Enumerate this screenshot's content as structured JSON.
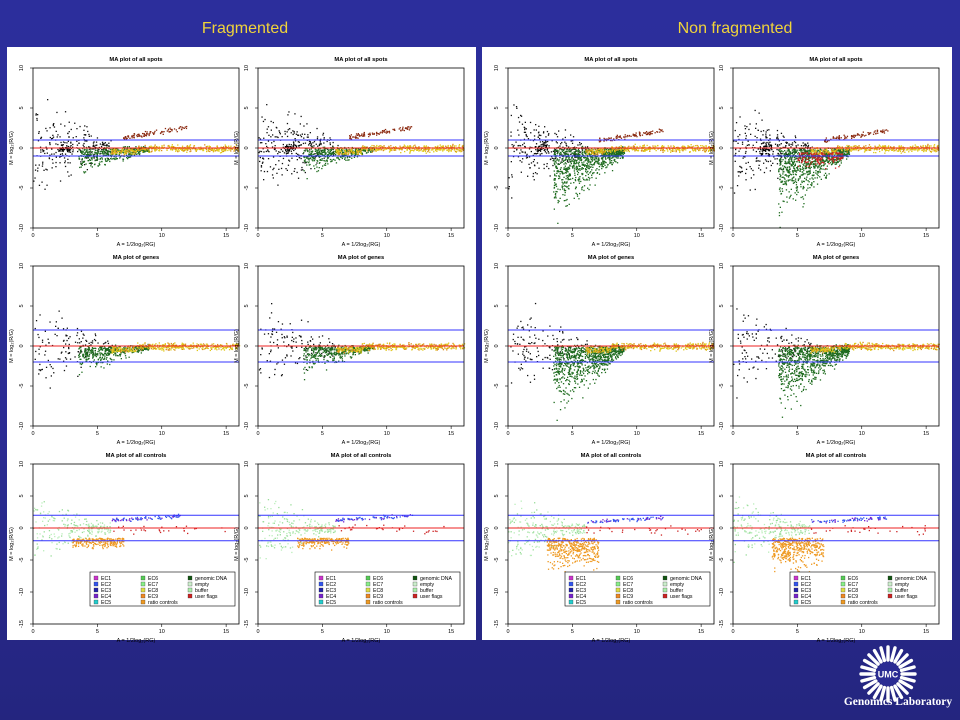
{
  "headings": {
    "left": "Fragmented",
    "right": "Non fragmented"
  },
  "plot_text": {
    "titles": [
      "MA plot of all spots",
      "MA plot of genes",
      "MA plot of all controls"
    ],
    "xlabel": "A = 1/2log₂(RG)",
    "ylabel": "M = log₂(R/G)"
  },
  "legend": {
    "entries": [
      {
        "label": "EC1",
        "color": "#cc33cc"
      },
      {
        "label": "EC2",
        "color": "#3355ee"
      },
      {
        "label": "EC3",
        "color": "#2222aa"
      },
      {
        "label": "EC4",
        "color": "#7722cc"
      },
      {
        "label": "EC5",
        "color": "#22cccc"
      },
      {
        "label": "EC6",
        "color": "#55cc55"
      },
      {
        "label": "EC7",
        "color": "#88ee88"
      },
      {
        "label": "EC8",
        "color": "#dddd44"
      },
      {
        "label": "EC9",
        "color": "#ee8822"
      },
      {
        "label": "ratio controls",
        "color": "#ee9922"
      },
      {
        "label": "genomic DNA",
        "color": "#115511"
      },
      {
        "label": "empty",
        "color": "#cceecc"
      },
      {
        "label": "buffer",
        "color": "#aaeeaa"
      },
      {
        "label": "user flags",
        "color": "#cc2222"
      }
    ]
  },
  "logo": {
    "initials": "UMC",
    "caption": "Genomics Laboratory"
  },
  "colors": {
    "background": "#2a2b93",
    "heading": "#f0d43a",
    "spots_general": "#111111",
    "spots_green": "#1e6b1e",
    "spots_orange": "#d98c1c",
    "spots_yellow": "#e0c81c",
    "spots_brown": "#8b2a10",
    "line_blue": "#3333ff",
    "line_red": "#ee2222"
  },
  "chart_data": [
    {
      "type": "scatter",
      "panel": "Fragmented",
      "row": "all spots",
      "title": "MA plot of all spots",
      "xlabel": "A = 1/2log₂(RG)",
      "ylabel": "M = log₂(R/G)",
      "xlim": [
        0,
        16
      ],
      "ylim": [
        -10,
        10
      ],
      "xticks": [
        0,
        5,
        10,
        15
      ],
      "yticks": [
        -10,
        -5,
        0,
        5,
        10
      ],
      "hlines": {
        "red": [
          0
        ],
        "blue": [
          1,
          -1
        ]
      }
    },
    {
      "type": "scatter",
      "panel": "Fragmented",
      "row": "all spots",
      "title": "MA plot of all spots",
      "xlabel": "A = 1/2log₂(RG)",
      "ylabel": "M = log₂(R/G)",
      "xlim": [
        0,
        16
      ],
      "ylim": [
        -10,
        10
      ],
      "xticks": [
        0,
        5,
        10,
        15
      ],
      "yticks": [
        -10,
        -5,
        0,
        5,
        10
      ],
      "hlines": {
        "red": [
          0
        ],
        "blue": [
          1,
          -1
        ]
      }
    },
    {
      "type": "scatter",
      "panel": "Non fragmented",
      "row": "all spots",
      "title": "MA plot of all spots",
      "xlabel": "A = 1/2log₂(RG)",
      "ylabel": "M = log₂(R/G)",
      "xlim": [
        0,
        16
      ],
      "ylim": [
        -10,
        10
      ],
      "xticks": [
        0,
        5,
        10,
        15
      ],
      "yticks": [
        -10,
        -5,
        0,
        5,
        10
      ],
      "hlines": {
        "red": [
          0
        ],
        "blue": [
          1,
          -1
        ]
      }
    },
    {
      "type": "scatter",
      "panel": "Non fragmented",
      "row": "all spots",
      "title": "MA plot of all spots",
      "xlabel": "A = 1/2log₂(RG)",
      "ylabel": "M = log₂(R/G)",
      "xlim": [
        0,
        16
      ],
      "ylim": [
        -10,
        10
      ],
      "xticks": [
        0,
        5,
        10,
        15
      ],
      "yticks": [
        -10,
        -5,
        0,
        5,
        10
      ],
      "hlines": {
        "red": [
          0
        ],
        "blue": [
          1,
          -1
        ]
      }
    },
    {
      "type": "scatter",
      "panel": "Fragmented",
      "row": "genes",
      "title": "MA plot of genes",
      "xlabel": "A = 1/2log₂(RG)",
      "ylabel": "M = log₂(R/G)",
      "xlim": [
        0,
        16
      ],
      "ylim": [
        -10,
        10
      ],
      "xticks": [
        0,
        5,
        10,
        15
      ],
      "yticks": [
        -10,
        -5,
        0,
        5,
        10
      ],
      "hlines": {
        "red": [
          0
        ],
        "blue": [
          2,
          -2
        ]
      }
    },
    {
      "type": "scatter",
      "panel": "Fragmented",
      "row": "genes",
      "title": "MA plot of genes",
      "xlabel": "A = 1/2log₂(RG)",
      "ylabel": "M = log₂(R/G)",
      "xlim": [
        0,
        16
      ],
      "ylim": [
        -10,
        10
      ],
      "xticks": [
        0,
        5,
        10,
        15
      ],
      "yticks": [
        -10,
        -5,
        0,
        5,
        10
      ],
      "hlines": {
        "red": [
          0
        ],
        "blue": [
          2,
          -2
        ]
      }
    },
    {
      "type": "scatter",
      "panel": "Non fragmented",
      "row": "genes",
      "title": "MA plot of genes",
      "xlabel": "A = 1/2log₂(RG)",
      "ylabel": "M = log₂(R/G)",
      "xlim": [
        0,
        16
      ],
      "ylim": [
        -10,
        10
      ],
      "xticks": [
        0,
        5,
        10,
        15
      ],
      "yticks": [
        -10,
        -5,
        0,
        5,
        10
      ],
      "hlines": {
        "red": [
          0
        ],
        "blue": [
          2,
          -2
        ]
      }
    },
    {
      "type": "scatter",
      "panel": "Non fragmented",
      "row": "genes",
      "title": "MA plot of genes",
      "xlabel": "A = 1/2log₂(RG)",
      "ylabel": "M = log₂(R/G)",
      "xlim": [
        0,
        16
      ],
      "ylim": [
        -10,
        10
      ],
      "xticks": [
        0,
        5,
        10,
        15
      ],
      "yticks": [
        -10,
        -5,
        0,
        5,
        10
      ],
      "hlines": {
        "red": [
          0
        ],
        "blue": [
          2,
          -2
        ]
      }
    },
    {
      "type": "scatter",
      "panel": "Fragmented",
      "row": "all controls",
      "title": "MA plot of all controls",
      "xlabel": "A = 1/2log₂(RG)",
      "ylabel": "M = log₂(R/G)",
      "xlim": [
        0,
        16
      ],
      "ylim": [
        -15,
        10
      ],
      "xticks": [
        0,
        5,
        10,
        15
      ],
      "yticks": [
        -15,
        -10,
        -5,
        0,
        5,
        10
      ],
      "hlines": {
        "red": [
          0
        ],
        "blue": [
          2,
          -2
        ]
      },
      "legend": true
    },
    {
      "type": "scatter",
      "panel": "Fragmented",
      "row": "all controls",
      "title": "MA plot of all controls",
      "xlabel": "A = 1/2log₂(RG)",
      "ylabel": "M = log₂(R/G)",
      "xlim": [
        0,
        16
      ],
      "ylim": [
        -15,
        10
      ],
      "xticks": [
        0,
        5,
        10,
        15
      ],
      "yticks": [
        -15,
        -10,
        -5,
        0,
        5,
        10
      ],
      "hlines": {
        "red": [
          0
        ],
        "blue": [
          2,
          -2
        ]
      },
      "legend": true
    },
    {
      "type": "scatter",
      "panel": "Non fragmented",
      "row": "all controls",
      "title": "MA plot of all controls",
      "xlabel": "A = 1/2log₂(RG)",
      "ylabel": "M = log₂(R/G)",
      "xlim": [
        0,
        16
      ],
      "ylim": [
        -15,
        10
      ],
      "xticks": [
        0,
        5,
        10,
        15
      ],
      "yticks": [
        -15,
        -10,
        -5,
        0,
        5,
        10
      ],
      "hlines": {
        "red": [
          0
        ],
        "blue": [
          2,
          -2
        ]
      },
      "legend": true
    },
    {
      "type": "scatter",
      "panel": "Non fragmented",
      "row": "all controls",
      "title": "MA plot of all controls",
      "xlabel": "A = 1/2log₂(RG)",
      "ylabel": "M = log₂(R/G)",
      "xlim": [
        0,
        16
      ],
      "ylim": [
        -15,
        10
      ],
      "xticks": [
        0,
        5,
        10,
        15
      ],
      "yticks": [
        -15,
        -10,
        -5,
        0,
        5,
        10
      ],
      "hlines": {
        "red": [
          0
        ],
        "blue": [
          2,
          -2
        ]
      },
      "legend": true
    }
  ]
}
